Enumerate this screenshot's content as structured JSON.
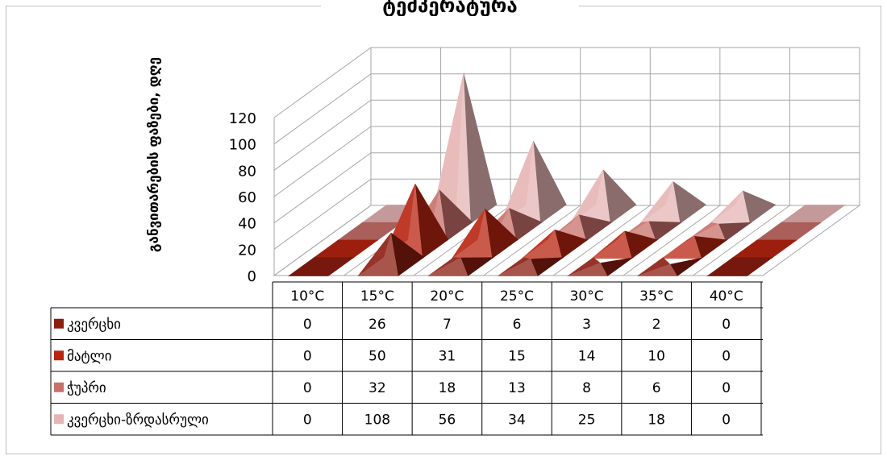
{
  "chart_data": {
    "type": "bar",
    "subtype": "3d-pyramid",
    "title": "ტემპერატურა",
    "ylabel": "განვითარების ფაზები, დღე",
    "xlabel": "",
    "ylim": [
      0,
      120
    ],
    "yticks": [
      0,
      20,
      40,
      60,
      80,
      100,
      120
    ],
    "categories": [
      "10°C",
      "15°C",
      "20°C",
      "25°C",
      "30°C",
      "35°C",
      "40°C"
    ],
    "series": [
      {
        "name": "კვერცხი",
        "values": [
          0,
          26,
          7,
          6,
          3,
          2,
          0
        ],
        "color": "#8b1c10"
      },
      {
        "name": "მატლი",
        "values": [
          0,
          50,
          31,
          15,
          14,
          10,
          0
        ],
        "color": "#b82410"
      },
      {
        "name": "ჭუპრი",
        "values": [
          0,
          32,
          18,
          13,
          8,
          6,
          0
        ],
        "color": "#c8706a"
      },
      {
        "name": "კვერცხი-ზრდასრული",
        "values": [
          0,
          108,
          56,
          34,
          25,
          18,
          0
        ],
        "color": "#e6b4b4"
      }
    ],
    "grid": true,
    "legend": "data-table"
  }
}
